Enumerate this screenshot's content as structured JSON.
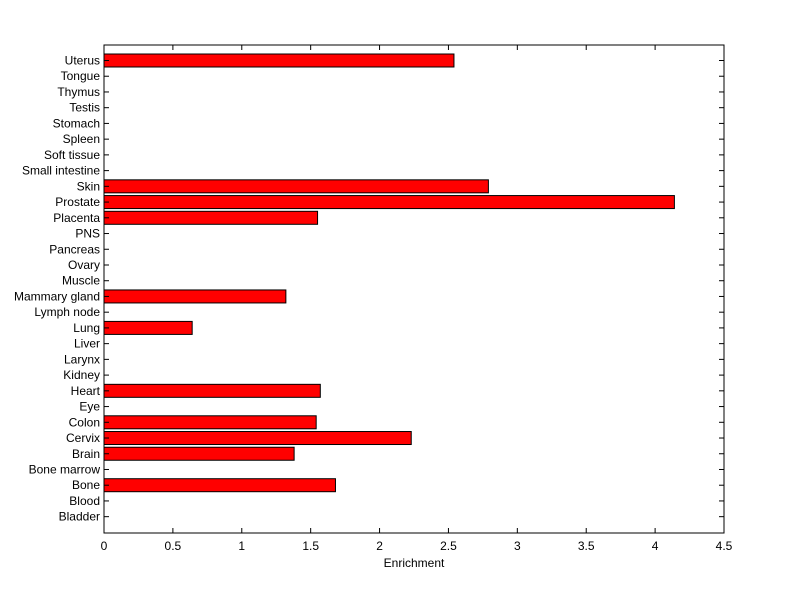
{
  "chart_data": {
    "type": "bar",
    "orientation": "horizontal",
    "title": "",
    "xlabel": "Enrichment",
    "ylabel": "",
    "xlim": [
      0,
      4.5
    ],
    "xticks": [
      "0",
      "0.5",
      "1",
      "1.5",
      "2",
      "2.5",
      "3",
      "3.5",
      "4",
      "4.5"
    ],
    "grid": false,
    "legend": "none",
    "bar_color": "#ff0000",
    "bar_edge_color": "#000000",
    "categories": [
      "Uterus",
      "Tongue",
      "Thymus",
      "Testis",
      "Stomach",
      "Spleen",
      "Soft tissue",
      "Small intestine",
      "Skin",
      "Prostate",
      "Placenta",
      "PNS",
      "Pancreas",
      "Ovary",
      "Muscle",
      "Mammary gland",
      "Lymph node",
      "Lung",
      "Liver",
      "Larynx",
      "Kidney",
      "Heart",
      "Eye",
      "Colon",
      "Cervix",
      "Brain",
      "Bone marrow",
      "Bone",
      "Blood",
      "Bladder"
    ],
    "values": [
      2.54,
      0,
      0,
      0,
      0,
      0,
      0,
      0,
      2.79,
      4.14,
      1.55,
      0,
      0,
      0,
      0,
      1.32,
      0,
      0.64,
      0,
      0,
      0,
      1.57,
      0,
      1.54,
      2.23,
      1.38,
      0,
      1.68,
      0,
      0
    ]
  }
}
